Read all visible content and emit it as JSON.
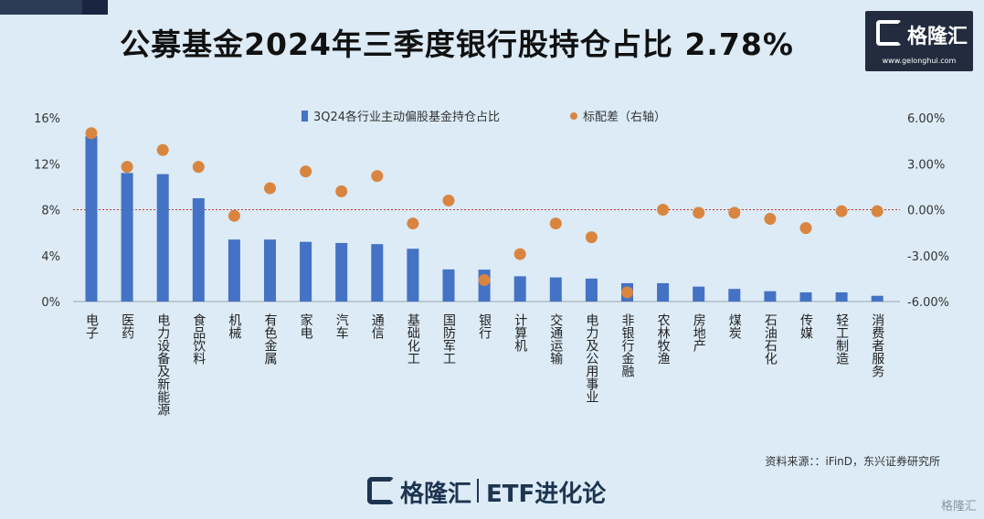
{
  "header": {
    "title": "公募基金2024年三季度银行股持仓占比 2.78%"
  },
  "logo": {
    "brand": "格隆汇",
    "url": "www.gelonghui.com"
  },
  "source": "资料来源：：iFinD，东兴证券研究所",
  "footer": {
    "brand": "格隆汇",
    "etf_label": "ETF进化论"
  },
  "watermark": "格隆汇",
  "colors": {
    "bar": "#4472c4",
    "dot": "#d98540",
    "reference_line": "#c0392b",
    "background": "#dcebf6"
  },
  "chart_data": {
    "type": "bar",
    "categories": [
      "电子",
      "医药",
      "电力设备及新能源",
      "食品饮料",
      "机械",
      "有色金属",
      "家电",
      "汽车",
      "通信",
      "基础化工",
      "国防军工",
      "银行",
      "计算机",
      "交通运输",
      "电力及公用事业",
      "非银行金融",
      "农林牧渔",
      "房地产",
      "煤炭",
      "石油石化",
      "传媒",
      "轻工制造",
      "消费者服务"
    ],
    "series": [
      {
        "name": "3Q24各行业主动偏股基金持仓占比",
        "type": "bar",
        "axis": "left",
        "values": [
          14.4,
          11.2,
          11.1,
          9.0,
          5.4,
          5.4,
          5.2,
          5.1,
          5.0,
          4.6,
          2.8,
          2.78,
          2.2,
          2.1,
          2.0,
          1.6,
          1.6,
          1.3,
          1.1,
          0.9,
          0.8,
          0.8,
          0.5
        ]
      },
      {
        "name": "标配差（右轴）",
        "type": "scatter",
        "axis": "right",
        "values": [
          5.0,
          2.8,
          3.9,
          2.8,
          -0.4,
          1.4,
          2.5,
          1.2,
          2.2,
          -0.9,
          0.6,
          -4.6,
          -2.9,
          -0.9,
          -1.8,
          -5.4,
          0.0,
          -0.2,
          -0.2,
          -0.6,
          -1.2,
          -0.1,
          -0.1
        ]
      }
    ],
    "y_left": {
      "ylim": [
        0,
        16
      ],
      "ticks": [
        0,
        4,
        8,
        12,
        16
      ],
      "tick_labels": [
        "0%",
        "4%",
        "8%",
        "12%",
        "16%"
      ]
    },
    "y_right": {
      "ylim": [
        -6,
        6
      ],
      "ticks": [
        -6,
        -3,
        0,
        3,
        6
      ],
      "tick_labels": [
        "-6.00%",
        "-3.00%",
        "0.00%",
        "3.00%",
        "6.00%"
      ]
    },
    "reference_line": {
      "axis": "right",
      "value": 0,
      "style": "dotted"
    },
    "legend_position": "top-center",
    "grid": false
  }
}
